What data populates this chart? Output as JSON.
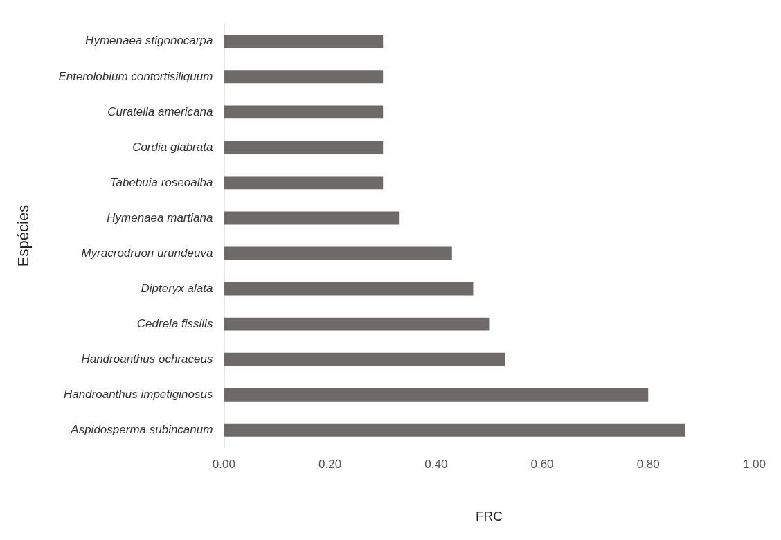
{
  "chart_data": {
    "type": "bar",
    "orientation": "horizontal",
    "xlabel": "FRC",
    "ylabel": "Espécies",
    "categories": [
      "Hymenaea stigonocarpa",
      "Enterolobium contortisiliquum",
      "Curatella americana",
      "Cordia glabrata",
      "Tabebuia roseoalba",
      "Hymenaea martiana",
      "Myracrodruon urundeuva",
      "Dipteryx alata",
      "Cedrela fissilis",
      "Handroanthus ochraceus",
      "Handroanthus impetiginosus",
      "Aspidosperma subincanum"
    ],
    "values": [
      0.3,
      0.3,
      0.3,
      0.3,
      0.3,
      0.33,
      0.43,
      0.47,
      0.5,
      0.53,
      0.8,
      0.87
    ],
    "color": "#6e6a69",
    "xlim": [
      0,
      1
    ],
    "xticks": [
      {
        "value": 0,
        "label": "0.00"
      },
      {
        "value": 0.2,
        "label": "0.20"
      },
      {
        "value": 0.4,
        "label": "0.40"
      },
      {
        "value": 0.6,
        "label": "0.60"
      },
      {
        "value": 0.8,
        "label": "0.80"
      },
      {
        "value": 1,
        "label": "1.00"
      }
    ],
    "grid": false,
    "legend": false
  }
}
